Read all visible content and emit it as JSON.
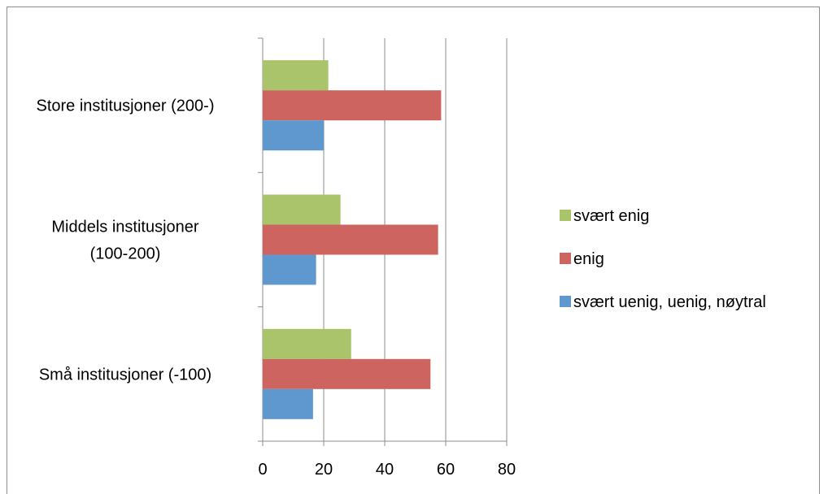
{
  "chart_data": {
    "type": "bar",
    "orientation": "horizontal",
    "categories": [
      [
        "Store institusjoner (200-)"
      ],
      [
        "Middels institusjoner",
        "(100-200)"
      ],
      [
        "Små institusjoner (-100)"
      ]
    ],
    "series": [
      {
        "name": "svært enig",
        "color": "#a9c46a",
        "values": [
          21.5,
          25.5,
          29
        ]
      },
      {
        "name": "enig",
        "color": "#cd6460",
        "values": [
          58.5,
          57.5,
          55
        ]
      },
      {
        "name": "svært uenig, uenig, nøytral",
        "color": "#5f97cf",
        "values": [
          20,
          17.5,
          16.5
        ]
      }
    ],
    "xlim": [
      0,
      80
    ],
    "xticks": [
      0,
      20,
      40,
      60,
      80
    ],
    "grid": "vertical",
    "legend": "right"
  }
}
